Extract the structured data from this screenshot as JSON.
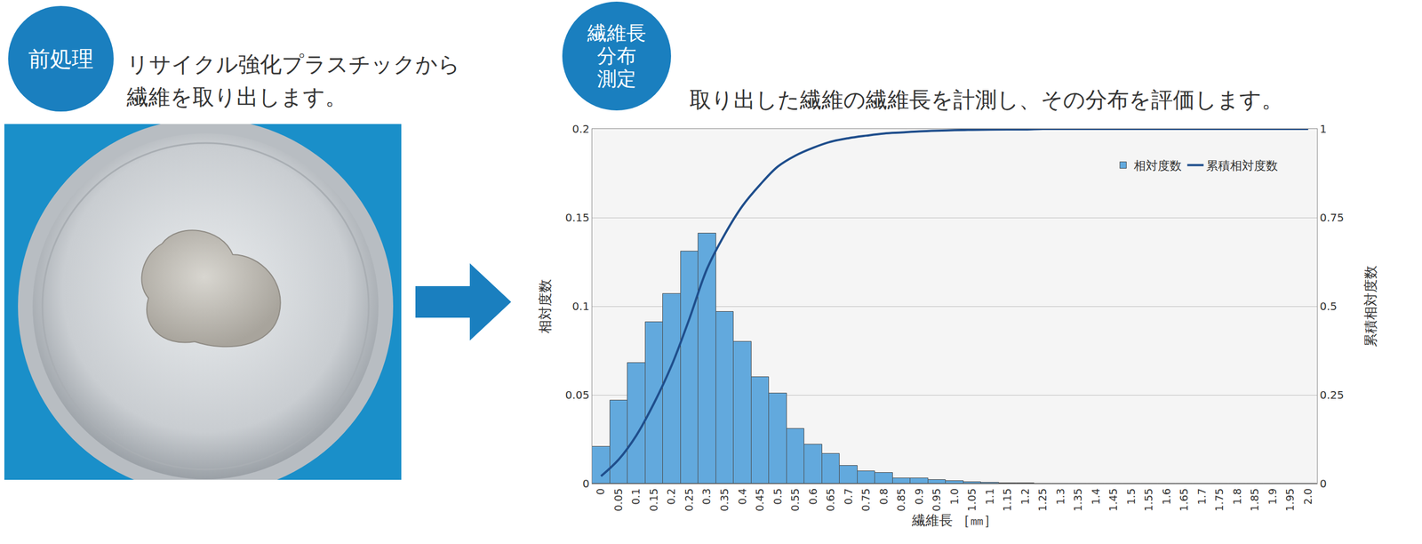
{
  "steps": [
    {
      "badge": [
        "前処理"
      ],
      "text": [
        "リサイクル強化プラスチックから",
        "繊維を取り出します。"
      ]
    },
    {
      "badge": [
        "繊維長",
        "分布",
        "測定"
      ],
      "text": [
        "取り出した繊維の繊維長を計測し、その分布を評価します。"
      ]
    }
  ],
  "chart_data": {
    "type": "bar",
    "x_label": "繊維長 ［㎜］",
    "y_label": "相対度数",
    "y2_label": "累積相対度数",
    "categories": [
      "0",
      "0.05",
      "0.1",
      "0.15",
      "0.2",
      "0.25",
      "0.3",
      "0.35",
      "0.4",
      "0.45",
      "0.5",
      "0.55",
      "0.6",
      "0.65",
      "0.7",
      "0.75",
      "0.8",
      "0.85",
      "0.9",
      "0.95",
      "1.0",
      "1.05",
      "1.1",
      "1.15",
      "1.2",
      "1.25",
      "1.3",
      "1.35",
      "1.4",
      "1.45",
      "1.5",
      "1.55",
      "1.6",
      "1.65",
      "1.7",
      "1.75",
      "1.8",
      "1.85",
      "1.9",
      "1.95",
      "2.0"
    ],
    "series": [
      {
        "name": "相対度数",
        "type": "bar",
        "color": "#62a9dd",
        "values": [
          0.021,
          0.047,
          0.068,
          0.091,
          0.107,
          0.131,
          0.141,
          0.097,
          0.08,
          0.06,
          0.051,
          0.031,
          0.022,
          0.017,
          0.01,
          0.007,
          0.006,
          0.003,
          0.003,
          0.002,
          0.0015,
          0.001,
          0.0005,
          0.0003,
          0.0002,
          0,
          0,
          0,
          0,
          0,
          0,
          0,
          0,
          0,
          0,
          0,
          0,
          0,
          0,
          0,
          0
        ]
      },
      {
        "name": "累積相対度数",
        "type": "line",
        "axis": "y2",
        "color": "#1f4e8c",
        "values": [
          0.021,
          0.068,
          0.136,
          0.227,
          0.334,
          0.465,
          0.606,
          0.703,
          0.783,
          0.843,
          0.894,
          0.925,
          0.947,
          0.964,
          0.974,
          0.981,
          0.987,
          0.99,
          0.993,
          0.995,
          0.9965,
          0.9975,
          0.998,
          0.9983,
          0.9985,
          1,
          1,
          1,
          1,
          1,
          1,
          1,
          1,
          1,
          1,
          1,
          1,
          1,
          1,
          1,
          1
        ]
      }
    ],
    "ylim": [
      0,
      0.2
    ],
    "yticks": [
      0,
      0.05,
      0.1,
      0.15,
      0.2
    ],
    "y2lim": [
      0,
      1
    ],
    "y2ticks": [
      0,
      0.25,
      0.5,
      0.75,
      1
    ],
    "grid": true,
    "legend": "top right"
  }
}
